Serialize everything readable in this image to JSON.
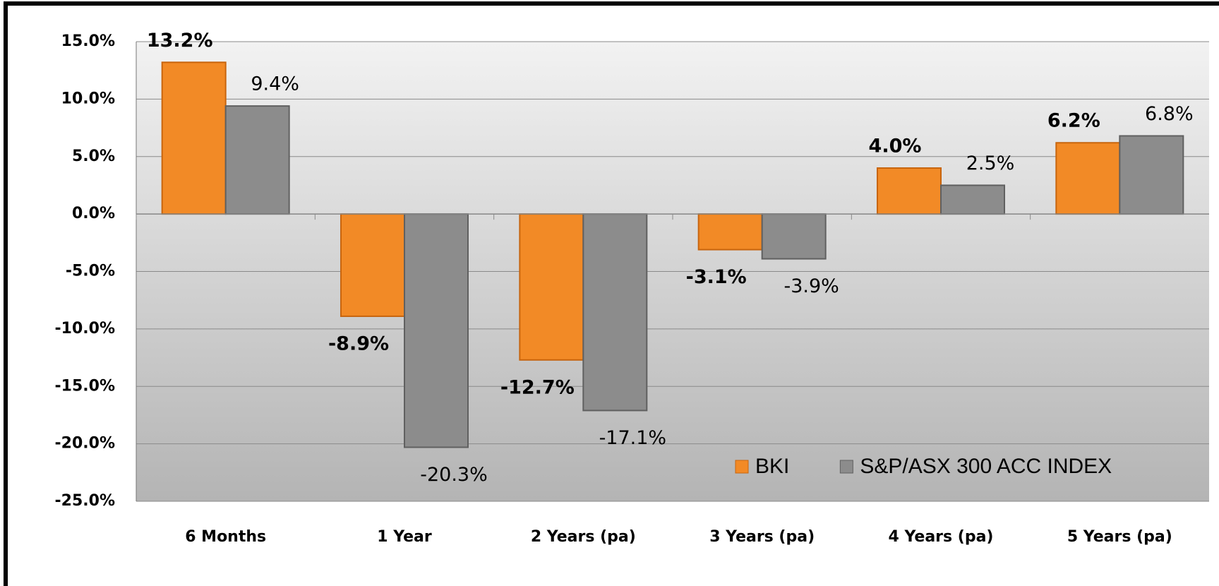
{
  "chart_data": {
    "type": "bar",
    "categories": [
      "6 Months",
      "1 Year",
      "2 Years (pa)",
      "3 Years (pa)",
      "4 Years (pa)",
      "5 Years (pa)"
    ],
    "series": [
      {
        "name": "BKI",
        "color": "#f28a26",
        "values": [
          13.2,
          -8.9,
          -12.7,
          -3.1,
          4.0,
          6.2
        ],
        "value_labels": [
          "13.2%",
          "-8.9%",
          "-12.7%",
          "-3.1%",
          "4.0%",
          "6.2%"
        ]
      },
      {
        "name": "S&P/ASX 300 ACC INDEX",
        "color": "#8c8c8c",
        "values": [
          9.4,
          -20.3,
          -17.1,
          -3.9,
          2.5,
          6.8
        ],
        "value_labels": [
          "9.4%",
          "-20.3%",
          "-17.1%",
          "-3.9%",
          "2.5%",
          "6.8%"
        ]
      }
    ],
    "ylim": [
      -25,
      15
    ],
    "yticks": [
      {
        "value": -25,
        "label": "-25.0%"
      },
      {
        "value": -20,
        "label": "-20.0%"
      },
      {
        "value": -15,
        "label": "-15.0%"
      },
      {
        "value": -10,
        "label": "-10.0%"
      },
      {
        "value": -5,
        "label": "-5.0%"
      },
      {
        "value": 0,
        "label": "0.0%"
      },
      {
        "value": 5,
        "label": "5.0%"
      },
      {
        "value": 10,
        "label": "10.0%"
      },
      {
        "value": 15,
        "label": "15.0%"
      }
    ],
    "grid": true,
    "legend": "bottom-right"
  }
}
